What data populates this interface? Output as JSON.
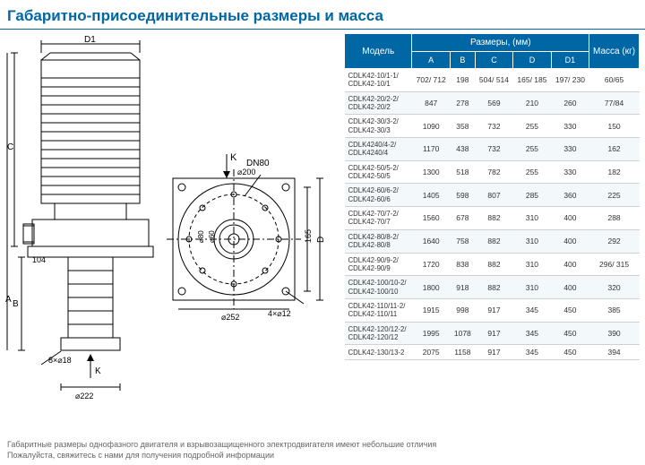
{
  "title": "Габаритно-присоединительные размеры и масса",
  "table": {
    "header_model": "Модель",
    "header_dims": "Размеры, (мм)",
    "header_mass": "Масса (кг)",
    "dim_cols": [
      "A",
      "B",
      "C",
      "D",
      "D1"
    ],
    "rows": [
      {
        "model": "CDLK42-10/1-1/\nCDLK42-10/1",
        "A": "702/ 712",
        "B": "198",
        "C": "504/ 514",
        "D": "165/ 185",
        "D1": "197/ 230",
        "mass": "60/65"
      },
      {
        "model": "CDLK42-20/2-2/\nCDLK42-20/2",
        "A": "847",
        "B": "278",
        "C": "569",
        "D": "210",
        "D1": "260",
        "mass": "77/84"
      },
      {
        "model": "CDLK42-30/3-2/\nCDLK42-30/3",
        "A": "1090",
        "B": "358",
        "C": "732",
        "D": "255",
        "D1": "330",
        "mass": "150"
      },
      {
        "model": "CDLK4240/4-2/\nCDLK4240/4",
        "A": "1170",
        "B": "438",
        "C": "732",
        "D": "255",
        "D1": "330",
        "mass": "162"
      },
      {
        "model": "CDLK42-50/5-2/\nCDLK42-50/5",
        "A": "1300",
        "B": "518",
        "C": "782",
        "D": "255",
        "D1": "330",
        "mass": "182"
      },
      {
        "model": "CDLK42-60/6-2/\nCDLK42-60/6",
        "A": "1405",
        "B": "598",
        "C": "807",
        "D": "285",
        "D1": "360",
        "mass": "225"
      },
      {
        "model": "CDLK42-70/7-2/\nCDLK42-70/7",
        "A": "1560",
        "B": "678",
        "C": "882",
        "D": "310",
        "D1": "400",
        "mass": "288"
      },
      {
        "model": "CDLK42-80/8-2/\nCDLK42-80/8",
        "A": "1640",
        "B": "758",
        "C": "882",
        "D": "310",
        "D1": "400",
        "mass": "292"
      },
      {
        "model": "CDLK42-90/9-2/\nCDLK42-90/9",
        "A": "1720",
        "B": "838",
        "C": "882",
        "D": "310",
        "D1": "400",
        "mass": "296/ 315"
      },
      {
        "model": "CDLK42-100/10-2/\nCDLK42-100/10",
        "A": "1800",
        "B": "918",
        "C": "882",
        "D": "310",
        "D1": "400",
        "mass": "320"
      },
      {
        "model": "CDLK42-110/11-2/\nCDLK42-110/11",
        "A": "1915",
        "B": "998",
        "C": "917",
        "D": "345",
        "D1": "450",
        "mass": "385"
      },
      {
        "model": "CDLK42-120/12-2/\nCDLK42-120/12",
        "A": "1995",
        "B": "1078",
        "C": "917",
        "D": "345",
        "D1": "450",
        "mass": "390"
      },
      {
        "model": "CDLK42-130/13-2",
        "A": "2075",
        "B": "1158",
        "C": "917",
        "D": "345",
        "D1": "450",
        "mass": "394"
      }
    ]
  },
  "diagram_labels": {
    "D1": "D1",
    "K": "K",
    "DN80": "DN80",
    "d200": "⌀200",
    "d252": "⌀252",
    "d80": "⌀80",
    "d60": "⌀60",
    "h104": "104",
    "h165": "165",
    "holes1": "8×⌀18",
    "holes2": "4×⌀12",
    "d222": "⌀222",
    "A": "A",
    "B": "B",
    "C": "C",
    "D": "D",
    "Kbottom": "K"
  },
  "footnotes": {
    "line1": "Габаритные размеры однофазного двигателя и взрывозащищенного электродвигателя имеют небольшие отличия",
    "line2": "Пожалуйста, свяжитесь с нами для получения подробной информации"
  },
  "colors": {
    "brand": "#0066a4",
    "row_alt": "#f3f8fb",
    "border": "#d0d0d0",
    "text": "#333333",
    "muted": "#666666"
  }
}
